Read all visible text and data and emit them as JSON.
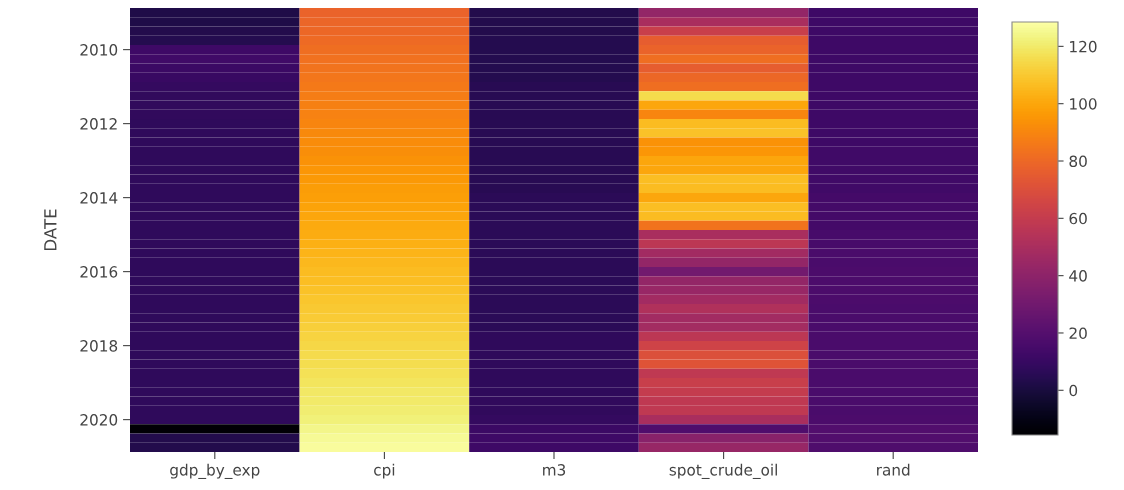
{
  "chart_data": {
    "type": "heatmap",
    "ylabel": "DATE",
    "categories": [
      "gdp_by_exp",
      "cpi",
      "m3",
      "spot_crude_oil",
      "rand"
    ],
    "y_categories": [
      null,
      null,
      null,
      null,
      "2010",
      null,
      null,
      null,
      null,
      null,
      null,
      null,
      "2012",
      null,
      null,
      null,
      null,
      null,
      null,
      null,
      "2014",
      null,
      null,
      null,
      null,
      null,
      null,
      null,
      "2016",
      null,
      null,
      null,
      null,
      null,
      null,
      null,
      "2018",
      null,
      null,
      null,
      null,
      null,
      null,
      null,
      "2020",
      null,
      null,
      null
    ],
    "cells": [
      [
        2,
        78,
        3,
        42,
        12
      ],
      [
        2,
        79,
        3,
        50,
        12
      ],
      [
        3,
        80,
        3,
        62,
        12
      ],
      [
        4,
        81,
        4,
        76,
        12
      ],
      [
        12,
        82,
        4,
        78,
        12
      ],
      [
        13,
        83,
        4,
        82,
        12
      ],
      [
        11,
        84,
        4,
        76,
        12
      ],
      [
        10,
        85,
        4,
        80,
        12
      ],
      [
        9,
        86,
        5,
        82,
        12
      ],
      [
        8,
        87,
        5,
        115,
        12
      ],
      [
        8,
        88,
        5,
        100,
        12
      ],
      [
        8,
        89,
        5,
        90,
        12
      ],
      [
        7,
        90,
        5,
        106,
        12
      ],
      [
        7,
        91,
        5,
        108,
        12
      ],
      [
        7,
        92,
        5,
        94,
        12
      ],
      [
        7,
        93,
        5,
        95,
        13
      ],
      [
        7,
        94,
        5,
        100,
        13
      ],
      [
        7,
        95,
        5,
        100,
        13
      ],
      [
        7,
        96,
        5,
        107,
        13
      ],
      [
        7,
        97,
        5,
        106,
        13
      ],
      [
        7,
        98,
        6,
        100,
        14
      ],
      [
        7,
        99,
        6,
        107,
        14
      ],
      [
        7,
        100,
        6,
        106,
        14
      ],
      [
        7,
        101,
        6,
        84,
        14
      ],
      [
        7,
        102,
        6,
        50,
        15
      ],
      [
        7,
        103,
        6,
        57,
        15
      ],
      [
        7,
        104,
        6,
        47,
        16
      ],
      [
        7,
        105,
        6,
        42,
        16
      ],
      [
        7,
        106,
        6,
        30,
        17
      ],
      [
        7,
        107,
        6,
        42,
        17
      ],
      [
        7,
        108,
        6,
        44,
        17
      ],
      [
        7,
        109,
        6,
        47,
        17
      ],
      [
        7,
        110,
        6,
        52,
        16
      ],
      [
        7,
        111,
        6,
        47,
        16
      ],
      [
        7,
        112,
        6,
        48,
        16
      ],
      [
        7,
        113,
        7,
        57,
        16
      ],
      [
        7,
        114,
        7,
        64,
        16
      ],
      [
        7,
        115,
        7,
        70,
        16
      ],
      [
        7,
        116,
        7,
        72,
        16
      ],
      [
        7,
        117,
        7,
        58,
        16
      ],
      [
        7,
        118,
        7,
        62,
        16
      ],
      [
        7,
        119,
        7,
        60,
        16
      ],
      [
        7,
        120,
        8,
        58,
        16
      ],
      [
        7,
        121,
        8,
        58,
        16
      ],
      [
        7,
        122,
        9,
        50,
        17
      ],
      [
        -15,
        124,
        11,
        18,
        19
      ],
      [
        3,
        126,
        12,
        38,
        19
      ],
      [
        3,
        127,
        12,
        43,
        18
      ]
    ],
    "clim": [
      -15.6,
      128.5
    ],
    "cticks": [
      0,
      20,
      40,
      60,
      80,
      100,
      120
    ],
    "grid": false
  }
}
